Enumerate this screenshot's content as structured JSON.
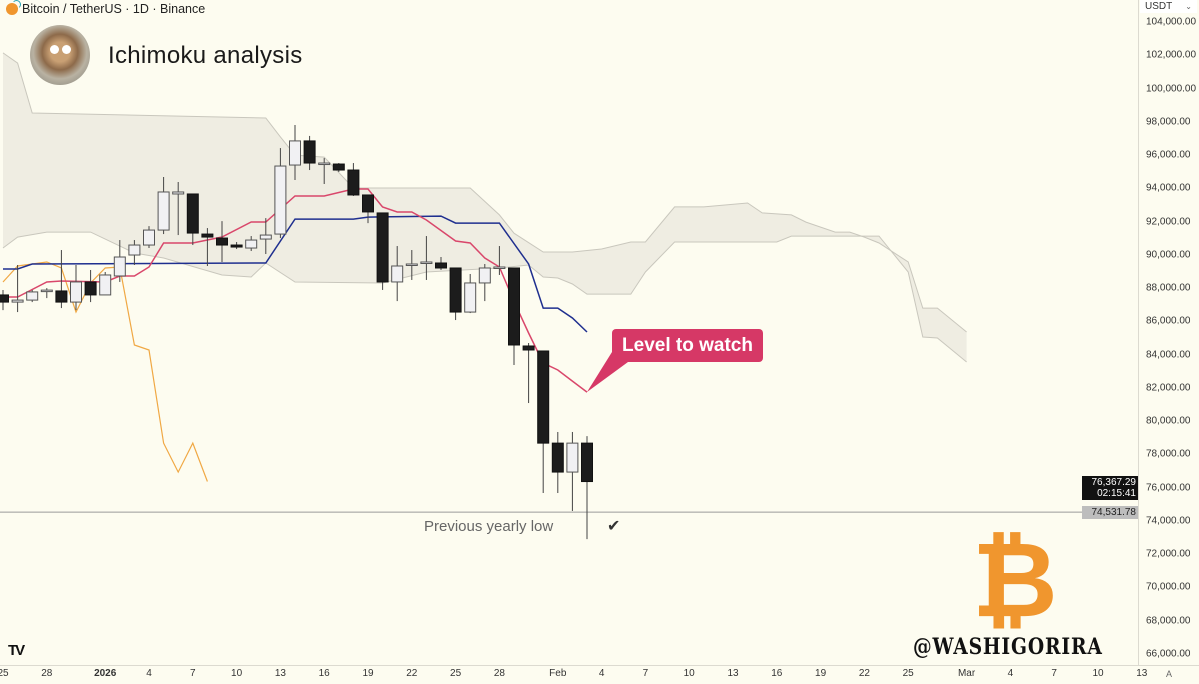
{
  "header": {
    "symbol": "Bitcoin / TetherUS · 1D · Binance",
    "title": "Ichimoku analysis"
  },
  "price_axis": {
    "currency": "USDT",
    "labels": [
      "104,000.00",
      "102,000.00",
      "100,000.00",
      "98,000.00",
      "96,000.00",
      "94,000.00",
      "92,000.00",
      "90,000.00",
      "88,000.00",
      "86,000.00",
      "84,000.00",
      "82,000.00",
      "80,000.00",
      "78,000.00",
      "76,000.00",
      "74,000.00",
      "72,000.00",
      "70,000.00",
      "68,000.00",
      "66,000.00"
    ],
    "current_price": "76,367.29",
    "countdown": "02:15:41",
    "level_price": "74,531.78"
  },
  "time_axis": {
    "labels": [
      {
        "date": "2025-12-25",
        "text": "25"
      },
      {
        "date": "2025-12-28",
        "text": "28"
      },
      {
        "date": "2026-01-01",
        "text": "2026",
        "bold": true
      },
      {
        "date": "2026-01-04",
        "text": "4"
      },
      {
        "date": "2026-01-07",
        "text": "7"
      },
      {
        "date": "2026-01-10",
        "text": "10"
      },
      {
        "date": "2026-01-13",
        "text": "13"
      },
      {
        "date": "2026-01-16",
        "text": "16"
      },
      {
        "date": "2026-01-19",
        "text": "19"
      },
      {
        "date": "2026-01-22",
        "text": "22"
      },
      {
        "date": "2026-01-25",
        "text": "25"
      },
      {
        "date": "2026-01-28",
        "text": "28"
      },
      {
        "date": "2026-02-01",
        "text": "Feb"
      },
      {
        "date": "2026-02-04",
        "text": "4"
      },
      {
        "date": "2026-02-07",
        "text": "7"
      },
      {
        "date": "2026-02-10",
        "text": "10"
      },
      {
        "date": "2026-02-13",
        "text": "13"
      },
      {
        "date": "2026-02-16",
        "text": "16"
      },
      {
        "date": "2026-02-19",
        "text": "19"
      },
      {
        "date": "2026-02-22",
        "text": "22"
      },
      {
        "date": "2026-02-25",
        "text": "25"
      },
      {
        "date": "2026-03-01",
        "text": "Mar"
      },
      {
        "date": "2026-03-04",
        "text": "4"
      },
      {
        "date": "2026-03-07",
        "text": "7"
      },
      {
        "date": "2026-03-10",
        "text": "10"
      },
      {
        "date": "2026-03-13",
        "text": "13"
      }
    ],
    "corner": "A"
  },
  "annotations": {
    "callout": "Level to watch",
    "callout_color": "#d63866",
    "horizontal_line_label": "Previous yearly low",
    "check_icon": "checkmark-icon"
  },
  "watermark": {
    "handle": "@WASHIGORIRA",
    "logo": "bitcoin-logo",
    "logo_color": "#f0962e",
    "platform_logo": "TV"
  },
  "colors": {
    "background": "#fdfcf0",
    "tenkan": "#d9476b",
    "kijun": "#1f2f8f",
    "chikou": "#f0a844",
    "cloud_fill": "#efede2",
    "cloud_edge": "#c9c7bd",
    "bull_body": "#f1f1f3",
    "bear_body": "#1c1c1c"
  },
  "chart_data": {
    "type": "candlestick",
    "ylim": [
      65500,
      104500
    ],
    "xlim": [
      "2025-12-25",
      "2026-03-14"
    ],
    "grid": false,
    "candles": [
      [
        "2025-12-25",
        87590,
        87890,
        86680,
        87160
      ],
      [
        "2025-12-26",
        87160,
        89390,
        86560,
        87280
      ],
      [
        "2025-12-27",
        87280,
        87890,
        87160,
        87770
      ],
      [
        "2025-12-28",
        87830,
        88000,
        87400,
        87880
      ],
      [
        "2025-12-29",
        87830,
        90290,
        86800,
        87160
      ],
      [
        "2025-12-30",
        87160,
        89390,
        86680,
        88370
      ],
      [
        "2025-12-31",
        88370,
        89090,
        87160,
        87590
      ],
      [
        "2026-01-01",
        87590,
        88970,
        87590,
        88790
      ],
      [
        "2026-01-02",
        88730,
        90890,
        88370,
        89870
      ],
      [
        "2026-01-03",
        89990,
        90890,
        89390,
        90590
      ],
      [
        "2026-01-04",
        90590,
        91730,
        90410,
        91490
      ],
      [
        "2026-01-05",
        91490,
        94680,
        91250,
        93780
      ],
      [
        "2026-01-06",
        93660,
        94380,
        91190,
        93780
      ],
      [
        "2026-01-07",
        93660,
        93660,
        90590,
        91310
      ],
      [
        "2026-01-08",
        91250,
        91610,
        89330,
        91070
      ],
      [
        "2026-01-09",
        91010,
        92030,
        89570,
        90590
      ],
      [
        "2026-01-10",
        90590,
        90770,
        90350,
        90470
      ],
      [
        "2026-01-11",
        90410,
        91130,
        90230,
        90890
      ],
      [
        "2026-01-12",
        90950,
        92210,
        90050,
        91190
      ],
      [
        "2026-01-13",
        91250,
        96420,
        91010,
        95340
      ],
      [
        "2026-01-14",
        95400,
        97810,
        94500,
        96850
      ],
      [
        "2026-01-15",
        96850,
        97150,
        95100,
        95520
      ],
      [
        "2026-01-16",
        95520,
        95820,
        94260,
        95520
      ],
      [
        "2026-01-17",
        95460,
        95520,
        94980,
        95100
      ],
      [
        "2026-01-18",
        95100,
        95520,
        93540,
        93600
      ],
      [
        "2026-01-19",
        93600,
        93600,
        91910,
        92580
      ],
      [
        "2026-01-20",
        92520,
        92520,
        87890,
        88370
      ],
      [
        "2026-01-21",
        88370,
        90530,
        87220,
        89330
      ],
      [
        "2026-01-22",
        89450,
        90290,
        88490,
        89450
      ],
      [
        "2026-01-23",
        89570,
        91130,
        88490,
        89570
      ],
      [
        "2026-01-24",
        89510,
        89870,
        89090,
        89210
      ],
      [
        "2026-01-25",
        89210,
        89210,
        86080,
        86560
      ],
      [
        "2026-01-26",
        86560,
        88850,
        86500,
        88310
      ],
      [
        "2026-01-27",
        88310,
        89450,
        87220,
        89210
      ],
      [
        "2026-01-28",
        89270,
        90530,
        88790,
        89270
      ],
      [
        "2026-01-29",
        89210,
        89210,
        83380,
        84580
      ],
      [
        "2026-01-30",
        84520,
        84700,
        81090,
        84280
      ],
      [
        "2026-01-31",
        84220,
        84220,
        75680,
        78680
      ],
      [
        "2026-02-01",
        78680,
        79350,
        75680,
        76940
      ],
      [
        "2026-02-02",
        76940,
        79350,
        74600,
        78680
      ],
      [
        "2026-02-03",
        78680,
        79100,
        72910,
        76370
      ]
    ],
    "tenkan": [
      [
        "2025-12-25",
        87465
      ],
      [
        "2025-12-26",
        87465
      ],
      [
        "2025-12-28",
        88366
      ],
      [
        "2025-12-29",
        88426
      ],
      [
        "2026-01-01",
        88366
      ],
      [
        "2026-01-02",
        88727
      ],
      [
        "2026-01-03",
        88727
      ],
      [
        "2026-01-04",
        89268
      ],
      [
        "2026-01-05",
        90711
      ],
      [
        "2026-01-07",
        90711
      ],
      [
        "2026-01-09",
        91072
      ],
      [
        "2026-01-11",
        91974
      ],
      [
        "2026-01-12",
        91974
      ],
      [
        "2026-01-14",
        93537
      ],
      [
        "2026-01-16",
        93537
      ],
      [
        "2026-01-18",
        93958
      ],
      [
        "2026-01-19",
        93958
      ],
      [
        "2026-01-20",
        92876
      ],
      [
        "2026-01-21",
        92575
      ],
      [
        "2026-01-22",
        92575
      ],
      [
        "2026-01-23",
        92094
      ],
      [
        "2026-01-25",
        90832
      ],
      [
        "2026-01-26",
        90711
      ],
      [
        "2026-01-27",
        89810
      ],
      [
        "2026-01-28",
        89268
      ],
      [
        "2026-01-29",
        87200
      ],
      [
        "2026-01-30",
        85300
      ],
      [
        "2026-01-31",
        83500
      ],
      [
        "2026-02-01",
        83075
      ],
      [
        "2026-02-02",
        82410
      ],
      [
        "2026-02-03",
        81750
      ]
    ],
    "kijun": [
      [
        "2025-12-25",
        89150
      ],
      [
        "2025-12-26",
        89150
      ],
      [
        "2025-12-27",
        89450
      ],
      [
        "2026-01-12",
        89510
      ],
      [
        "2026-01-14",
        92150
      ],
      [
        "2026-01-18",
        92150
      ],
      [
        "2026-01-19",
        92270
      ],
      [
        "2026-01-24",
        92330
      ],
      [
        "2026-01-25",
        91910
      ],
      [
        "2026-01-28",
        91910
      ],
      [
        "2026-01-30",
        89450
      ],
      [
        "2026-01-31",
        86800
      ],
      [
        "2026-02-01",
        86800
      ],
      [
        "2026-02-02",
        86200
      ],
      [
        "2026-02-03",
        85360
      ]
    ],
    "chikou": [
      [
        "2025-12-25",
        88370
      ],
      [
        "2025-12-26",
        89330
      ],
      [
        "2025-12-27",
        89450
      ],
      [
        "2025-12-28",
        89570
      ],
      [
        "2025-12-29",
        89210
      ],
      [
        "2025-12-30",
        86560
      ],
      [
        "2025-12-31",
        88310
      ],
      [
        "2026-01-01",
        89210
      ],
      [
        "2026-01-02",
        89270
      ],
      [
        "2026-01-03",
        84580
      ],
      [
        "2026-01-04",
        84280
      ],
      [
        "2026-01-05",
        78680
      ],
      [
        "2026-01-06",
        76940
      ],
      [
        "2026-01-07",
        78680
      ],
      [
        "2026-01-08",
        76370
      ]
    ],
    "cloud_edge_upper": [
      [
        "2025-12-25",
        102140
      ],
      [
        "2025-12-26",
        101530
      ],
      [
        "2025-12-27",
        98530
      ],
      [
        "2026-01-12",
        98230
      ],
      [
        "2026-01-13",
        97090
      ],
      [
        "2026-01-14",
        96000
      ],
      [
        "2026-01-16",
        95880
      ],
      [
        "2026-01-18",
        94020
      ],
      [
        "2026-01-26",
        94020
      ],
      [
        "2026-01-28",
        92400
      ],
      [
        "2026-01-29",
        91300
      ],
      [
        "2026-01-31",
        90170
      ],
      [
        "2026-02-02",
        90170
      ],
      [
        "2026-02-04",
        90350
      ],
      [
        "2026-02-06",
        90770
      ],
      [
        "2026-02-07",
        90770
      ],
      [
        "2026-02-09",
        92880
      ],
      [
        "2026-02-11",
        92880
      ],
      [
        "2026-02-14",
        93120
      ],
      [
        "2026-02-15",
        92520
      ],
      [
        "2026-02-17",
        92400
      ],
      [
        "2026-02-18",
        91970
      ],
      [
        "2026-02-20",
        91370
      ],
      [
        "2026-02-21",
        91370
      ],
      [
        "2026-02-22",
        91070
      ],
      [
        "2026-02-23",
        90710
      ],
      [
        "2026-02-25",
        89570
      ],
      [
        "2026-02-26",
        86800
      ],
      [
        "2026-02-27",
        86800
      ],
      [
        "2026-03-01",
        85360
      ]
    ],
    "cloud_edge_lower": [
      [
        "2025-12-25",
        90410
      ],
      [
        "2025-12-26",
        91070
      ],
      [
        "2025-12-28",
        91370
      ],
      [
        "2025-12-31",
        91370
      ],
      [
        "2026-01-03",
        90110
      ],
      [
        "2026-01-05",
        89810
      ],
      [
        "2026-01-09",
        88790
      ],
      [
        "2026-01-11",
        88670
      ],
      [
        "2026-01-12",
        89510
      ],
      [
        "2026-01-14",
        88370
      ],
      [
        "2026-01-20",
        88310
      ],
      [
        "2026-01-23",
        88970
      ],
      [
        "2026-01-28",
        89210
      ],
      [
        "2026-01-30",
        89390
      ],
      [
        "2026-01-31",
        88670
      ],
      [
        "2026-02-01",
        88610
      ],
      [
        "2026-02-02",
        88250
      ],
      [
        "2026-02-03",
        87640
      ],
      [
        "2026-02-06",
        87640
      ],
      [
        "2026-02-07",
        88970
      ],
      [
        "2026-02-09",
        90770
      ],
      [
        "2026-02-16",
        90770
      ],
      [
        "2026-02-17",
        91130
      ],
      [
        "2026-02-23",
        91130
      ],
      [
        "2026-02-25",
        88970
      ],
      [
        "2026-02-26",
        85060
      ],
      [
        "2026-02-27",
        85000
      ],
      [
        "2026-03-01",
        83560
      ]
    ],
    "horizontal_line": 74531.78,
    "callout_target": [
      "2026-02-03",
      81750
    ]
  }
}
